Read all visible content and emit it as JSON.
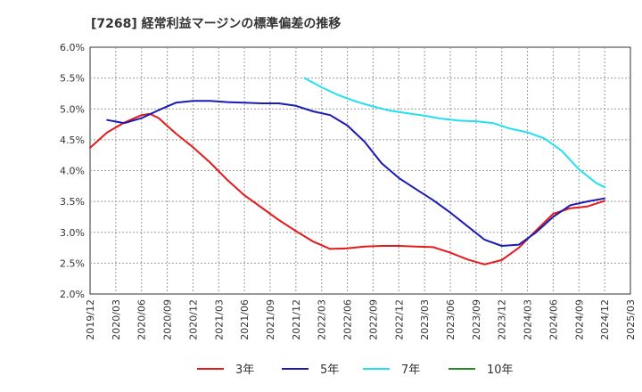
{
  "chart_data": {
    "type": "line",
    "title": "[7268]  経常利益マージンの標準偏差の推移",
    "xlabel": "",
    "ylabel": "",
    "ylim": [
      0.02,
      0.06
    ],
    "y_ticks": [
      "2.0%",
      "2.5%",
      "3.0%",
      "3.5%",
      "4.0%",
      "4.5%",
      "5.0%",
      "5.5%",
      "6.0%"
    ],
    "x_ticks": [
      "2019/12",
      "2020/03",
      "2020/06",
      "2020/09",
      "2020/12",
      "2021/03",
      "2021/06",
      "2021/09",
      "2021/12",
      "2022/03",
      "2022/06",
      "2022/09",
      "2022/12",
      "2023/03",
      "2023/06",
      "2023/09",
      "2023/12",
      "2024/03",
      "2024/06",
      "2024/09",
      "2024/12",
      "2025/03"
    ],
    "grid": true,
    "legend_position": "bottom",
    "series": [
      {
        "name": "3年",
        "color": "#e31a1c",
        "points": [
          [
            "2019/12",
            0.0437
          ],
          [
            "2020/02",
            0.0462
          ],
          [
            "2020/04",
            0.0478
          ],
          [
            "2020/06",
            0.049
          ],
          [
            "2020/07",
            0.0492
          ],
          [
            "2020/08",
            0.0485
          ],
          [
            "2020/10",
            0.046
          ],
          [
            "2020/12",
            0.0438
          ],
          [
            "2021/02",
            0.0413
          ],
          [
            "2021/04",
            0.0385
          ],
          [
            "2021/06",
            0.036
          ],
          [
            "2021/08",
            0.034
          ],
          [
            "2021/10",
            0.032
          ],
          [
            "2021/12",
            0.0302
          ],
          [
            "2022/02",
            0.0285
          ],
          [
            "2022/04",
            0.0273
          ],
          [
            "2022/06",
            0.0274
          ],
          [
            "2022/08",
            0.0277
          ],
          [
            "2022/10",
            0.0278
          ],
          [
            "2022/12",
            0.0278
          ],
          [
            "2023/02",
            0.0277
          ],
          [
            "2023/04",
            0.0276
          ],
          [
            "2023/06",
            0.0267
          ],
          [
            "2023/08",
            0.0256
          ],
          [
            "2023/10",
            0.0248
          ],
          [
            "2023/12",
            0.0255
          ],
          [
            "2024/02",
            0.0275
          ],
          [
            "2024/04",
            0.0303
          ],
          [
            "2024/06",
            0.033
          ],
          [
            "2024/08",
            0.0339
          ],
          [
            "2024/10",
            0.0342
          ],
          [
            "2024/12",
            0.0351
          ]
        ]
      },
      {
        "name": "5年",
        "color": "#1a1ab4",
        "points": [
          [
            "2020/02",
            0.0482
          ],
          [
            "2020/04",
            0.0477
          ],
          [
            "2020/06",
            0.0485
          ],
          [
            "2020/08",
            0.0498
          ],
          [
            "2020/10",
            0.051
          ],
          [
            "2020/12",
            0.0513
          ],
          [
            "2021/02",
            0.0513
          ],
          [
            "2021/04",
            0.0511
          ],
          [
            "2021/06",
            0.051
          ],
          [
            "2021/08",
            0.0509
          ],
          [
            "2021/10",
            0.0509
          ],
          [
            "2021/12",
            0.0505
          ],
          [
            "2022/02",
            0.0496
          ],
          [
            "2022/04",
            0.049
          ],
          [
            "2022/06",
            0.0473
          ],
          [
            "2022/08",
            0.0447
          ],
          [
            "2022/10",
            0.0412
          ],
          [
            "2022/12",
            0.0388
          ],
          [
            "2023/02",
            0.037
          ],
          [
            "2023/04",
            0.0352
          ],
          [
            "2023/06",
            0.0332
          ],
          [
            "2023/08",
            0.031
          ],
          [
            "2023/10",
            0.0288
          ],
          [
            "2023/12",
            0.0278
          ],
          [
            "2024/02",
            0.028
          ],
          [
            "2024/04",
            0.03
          ],
          [
            "2024/06",
            0.0325
          ],
          [
            "2024/08",
            0.0344
          ],
          [
            "2024/10",
            0.035
          ],
          [
            "2024/12",
            0.0355
          ]
        ]
      },
      {
        "name": "7年",
        "color": "#22e0f0",
        "points": [
          [
            "2022/01",
            0.055
          ],
          [
            "2022/03",
            0.0535
          ],
          [
            "2022/05",
            0.0522
          ],
          [
            "2022/07",
            0.0512
          ],
          [
            "2022/09",
            0.0504
          ],
          [
            "2022/11",
            0.0497
          ],
          [
            "2023/01",
            0.0493
          ],
          [
            "2023/03",
            0.0489
          ],
          [
            "2023/05",
            0.0484
          ],
          [
            "2023/07",
            0.0481
          ],
          [
            "2023/09",
            0.048
          ],
          [
            "2023/11",
            0.0477
          ],
          [
            "2024/01",
            0.0468
          ],
          [
            "2024/03",
            0.0462
          ],
          [
            "2024/05",
            0.0452
          ],
          [
            "2024/07",
            0.0432
          ],
          [
            "2024/09",
            0.0402
          ],
          [
            "2024/11",
            0.038
          ],
          [
            "2024/12",
            0.0373
          ]
        ]
      },
      {
        "name": "10年",
        "color": "#228b22",
        "points": []
      }
    ]
  }
}
